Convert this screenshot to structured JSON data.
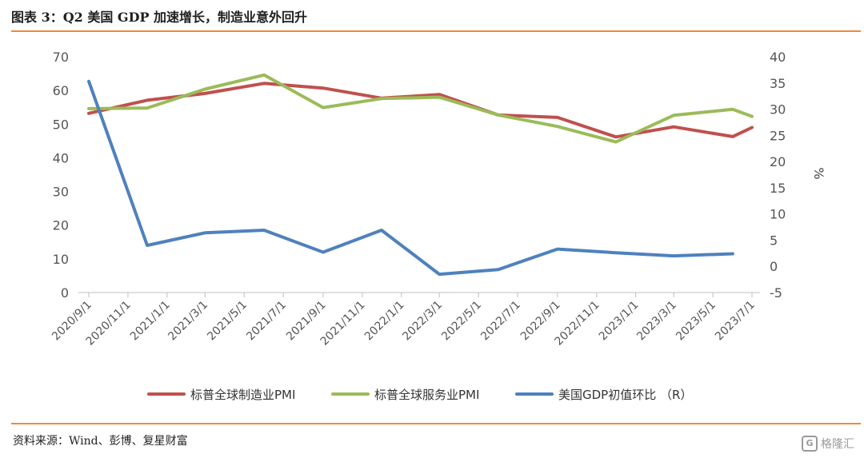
{
  "header": {
    "title": "图表 3：Q2 美国 GDP 加速增长，制造业意外回升"
  },
  "footer": {
    "source": "资料来源：Wind、彭博、复星财富",
    "watermark": "格隆汇"
  },
  "chart_data": {
    "type": "line",
    "x_ticks": [
      "2020/9/1",
      "2020/11/1",
      "2021/1/1",
      "2021/3/1",
      "2021/5/1",
      "2021/7/1",
      "2021/9/1",
      "2021/11/1",
      "2022/1/1",
      "2022/3/1",
      "2022/5/1",
      "2022/7/1",
      "2022/9/1",
      "2022/11/1",
      "2023/1/1",
      "2023/3/1",
      "2023/5/1",
      "2023/7/1"
    ],
    "x_range": [
      "2020/9/1",
      "2023/7/1"
    ],
    "left_axis": {
      "ticks": [
        "0",
        "10",
        "20",
        "30",
        "40",
        "50",
        "60",
        "70"
      ],
      "range": [
        0,
        70
      ]
    },
    "right_axis": {
      "ticks": [
        "-5",
        "0",
        "5",
        "10",
        "15",
        "20",
        "25",
        "30",
        "35",
        "40"
      ],
      "range": [
        -5,
        40
      ],
      "label": "%"
    },
    "series": [
      {
        "name": "标普全球制造业PMI",
        "axis": "left",
        "color": "#c0504d",
        "x": [
          "2020/9/1",
          "2020/12/1",
          "2021/3/1",
          "2021/6/1",
          "2021/9/1",
          "2021/12/1",
          "2022/3/1",
          "2022/6/1",
          "2022/9/1",
          "2022/12/1",
          "2023/3/1",
          "2023/6/1",
          "2023/7/1"
        ],
        "values": [
          53.2,
          57.1,
          59.1,
          62.1,
          60.7,
          57.7,
          58.8,
          52.7,
          52.0,
          46.2,
          49.2,
          46.3,
          49.0
        ]
      },
      {
        "name": "标普全球服务业PMI",
        "axis": "left",
        "color": "#9bbb59",
        "x": [
          "2020/9/1",
          "2020/12/1",
          "2021/3/1",
          "2021/6/1",
          "2021/9/1",
          "2021/12/1",
          "2022/3/1",
          "2022/6/1",
          "2022/9/1",
          "2022/12/1",
          "2023/3/1",
          "2023/6/1",
          "2023/7/1"
        ],
        "values": [
          54.6,
          54.8,
          60.4,
          64.6,
          54.9,
          57.6,
          58.0,
          52.7,
          49.3,
          44.7,
          52.6,
          54.4,
          52.3
        ]
      },
      {
        "name": "美国GDP初值环比 （R）",
        "axis": "right",
        "color": "#4f81bd",
        "x": [
          "2020/9/1",
          "2020/12/1",
          "2021/3/1",
          "2021/6/1",
          "2021/9/1",
          "2021/12/1",
          "2022/3/1",
          "2022/6/1",
          "2022/9/1",
          "2022/12/1",
          "2023/3/1",
          "2023/6/1"
        ],
        "values": [
          35.3,
          4.0,
          6.4,
          6.9,
          2.7,
          6.9,
          -1.5,
          -0.6,
          3.3,
          2.6,
          2.0,
          2.4
        ]
      }
    ],
    "legend_position": "bottom",
    "grid": false
  }
}
